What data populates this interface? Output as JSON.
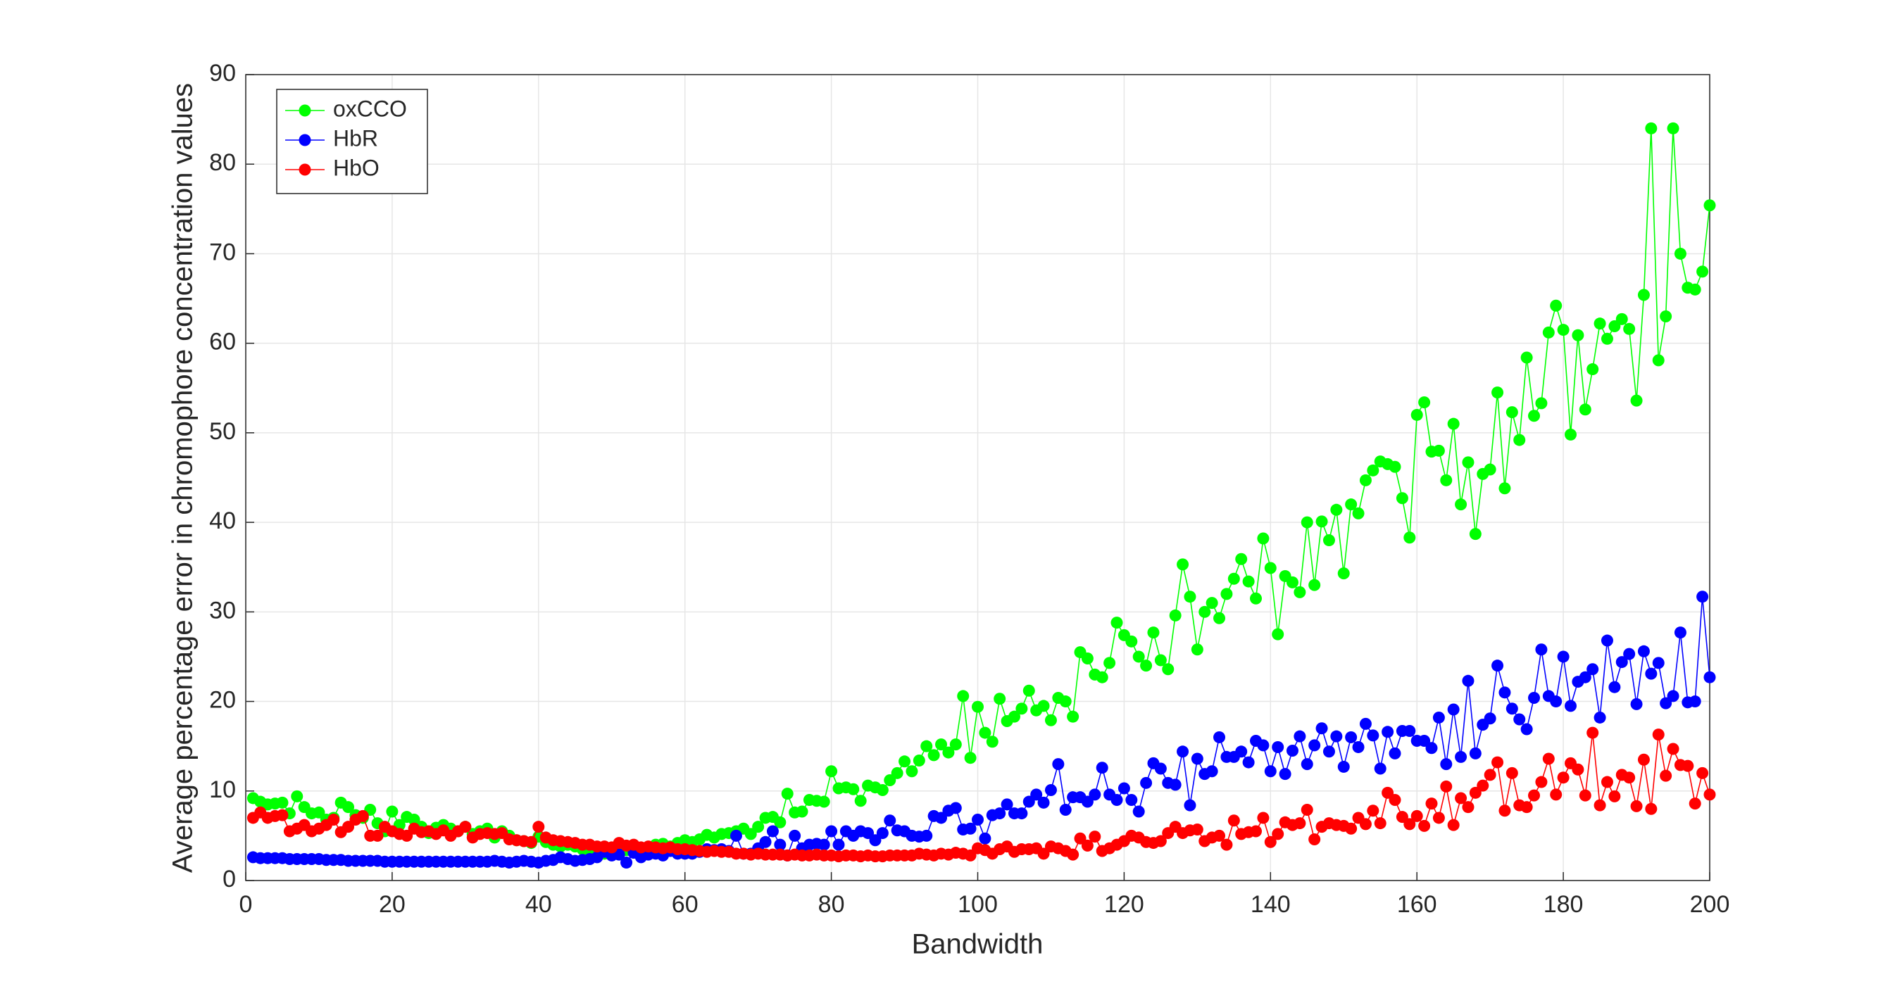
{
  "chart_data": {
    "type": "line",
    "xlabel": "Bandwidth",
    "ylabel": "Average percentage error in chromophore concentration values",
    "x": [
      1,
      2,
      3,
      4,
      5,
      6,
      7,
      8,
      9,
      10,
      11,
      12,
      13,
      14,
      15,
      16,
      17,
      18,
      19,
      20,
      21,
      22,
      23,
      24,
      25,
      26,
      27,
      28,
      29,
      30,
      31,
      32,
      33,
      34,
      35,
      36,
      37,
      38,
      39,
      40,
      41,
      42,
      43,
      44,
      45,
      46,
      47,
      48,
      49,
      50,
      51,
      52,
      53,
      54,
      55,
      56,
      57,
      58,
      59,
      60,
      61,
      62,
      63,
      64,
      65,
      66,
      67,
      68,
      69,
      70,
      71,
      72,
      73,
      74,
      75,
      76,
      77,
      78,
      79,
      80,
      81,
      82,
      83,
      84,
      85,
      86,
      87,
      88,
      89,
      90,
      91,
      92,
      93,
      94,
      95,
      96,
      97,
      98,
      99,
      100,
      101,
      102,
      103,
      104,
      105,
      106,
      107,
      108,
      109,
      110,
      111,
      112,
      113,
      114,
      115,
      116,
      117,
      118,
      119,
      120,
      121,
      122,
      123,
      124,
      125,
      126,
      127,
      128,
      129,
      130,
      131,
      132,
      133,
      134,
      135,
      136,
      137,
      138,
      139,
      140,
      141,
      142,
      143,
      144,
      145,
      146,
      147,
      148,
      149,
      150,
      151,
      152,
      153,
      154,
      155,
      156,
      157,
      158,
      159,
      160,
      161,
      162,
      163,
      164,
      165,
      166,
      167,
      168,
      169,
      170,
      171,
      172,
      173,
      174,
      175,
      176,
      177,
      178,
      179,
      180,
      181,
      182,
      183,
      184,
      185,
      186,
      187,
      188,
      189,
      190,
      191,
      192,
      193,
      194,
      195,
      196,
      197,
      198,
      199,
      200
    ],
    "series": [
      {
        "name": "oxCCO",
        "color": "#00ff00",
        "values": [
          9.2,
          8.8,
          8.5,
          8.6,
          8.7,
          7.5,
          9.4,
          8.2,
          7.5,
          7.6,
          6.8,
          7.0,
          8.7,
          8.2,
          7.3,
          7.0,
          7.9,
          6.4,
          5.5,
          7.7,
          6.2,
          7.1,
          6.8,
          6.0,
          5.3,
          5.9,
          6.2,
          5.8,
          5.5,
          6.0,
          5.2,
          5.5,
          5.8,
          4.8,
          5.5,
          5.0,
          4.5,
          4.4,
          4.2,
          4.9,
          4.3,
          4.0,
          3.8,
          4.0,
          3.8,
          3.5,
          3.2,
          3.3,
          3.0,
          3.1,
          3.0,
          3.4,
          3.2,
          3.5,
          3.3,
          4.0,
          4.1,
          3.8,
          4.2,
          4.5,
          4.3,
          4.6,
          5.1,
          4.8,
          5.2,
          5.3,
          5.5,
          5.8,
          5.2,
          6.0,
          7.0,
          7.1,
          6.5,
          9.7,
          7.6,
          7.7,
          9.0,
          8.9,
          8.8,
          12.2,
          10.3,
          10.4,
          10.2,
          8.9,
          10.6,
          10.4,
          10.1,
          11.2,
          12.0,
          13.3,
          12.2,
          13.4,
          15.0,
          14.0,
          15.2,
          14.3,
          15.2,
          20.6,
          13.7,
          19.4,
          16.5,
          15.5,
          20.3,
          17.8,
          18.3,
          19.2,
          21.2,
          19.0,
          19.5,
          17.9,
          20.4,
          20.0,
          18.3,
          25.5,
          24.8,
          23.0,
          22.7,
          24.3,
          28.8,
          27.4,
          26.7,
          25.0,
          24.0,
          27.7,
          24.6,
          23.6,
          29.6,
          35.3,
          31.7,
          25.8,
          30.0,
          31.0,
          29.3,
          32.0,
          33.7,
          35.9,
          33.4,
          31.5,
          38.2,
          34.9,
          27.5,
          34.0,
          33.3,
          32.2,
          40.0,
          33.0,
          40.1,
          38.0,
          41.4,
          34.3,
          42.0,
          41.0,
          44.7,
          45.8,
          46.8,
          46.5,
          46.2,
          42.7,
          38.3,
          52.0,
          53.4,
          47.9,
          48.0,
          44.7,
          51.0,
          42.0,
          46.7,
          38.7,
          45.4,
          45.9,
          54.5,
          43.8,
          52.3,
          49.2,
          58.4,
          51.9,
          53.3,
          61.2,
          64.2,
          61.5,
          49.8,
          60.9,
          52.6,
          57.1,
          62.2,
          60.5,
          61.9,
          62.7,
          61.6,
          53.6,
          65.4,
          84.0,
          58.1,
          63.0,
          84.0,
          70.0,
          66.2,
          66.0,
          68.0,
          75.4
        ]
      },
      {
        "name": "HbR",
        "color": "#0000ff",
        "values": [
          2.6,
          2.5,
          2.5,
          2.5,
          2.5,
          2.4,
          2.4,
          2.4,
          2.4,
          2.4,
          2.3,
          2.3,
          2.3,
          2.2,
          2.2,
          2.2,
          2.2,
          2.2,
          2.1,
          2.1,
          2.1,
          2.1,
          2.1,
          2.1,
          2.1,
          2.1,
          2.1,
          2.1,
          2.1,
          2.1,
          2.1,
          2.1,
          2.1,
          2.2,
          2.1,
          2.0,
          2.1,
          2.2,
          2.1,
          2.0,
          2.2,
          2.3,
          2.6,
          2.4,
          2.2,
          2.3,
          2.4,
          2.6,
          3.2,
          2.8,
          2.9,
          2.0,
          3.1,
          2.6,
          2.9,
          3.0,
          2.8,
          3.3,
          3.0,
          3.0,
          3.0,
          3.2,
          3.5,
          3.4,
          3.5,
          3.3,
          5.0,
          3.0,
          3.0,
          3.6,
          4.3,
          5.5,
          4.0,
          2.8,
          5.0,
          3.6,
          4.0,
          4.1,
          4.0,
          5.5,
          4.0,
          5.5,
          5.0,
          5.5,
          5.3,
          4.5,
          5.3,
          6.7,
          5.6,
          5.5,
          5.0,
          4.9,
          5.0,
          7.2,
          7.0,
          7.8,
          8.1,
          5.7,
          5.8,
          6.8,
          4.7,
          7.3,
          7.5,
          8.5,
          7.5,
          7.5,
          8.8,
          9.6,
          8.7,
          10.1,
          13.0,
          7.9,
          9.3,
          9.3,
          8.8,
          9.6,
          12.6,
          9.6,
          9.0,
          10.3,
          9.0,
          7.7,
          10.9,
          13.1,
          12.5,
          10.9,
          10.7,
          14.4,
          8.4,
          13.6,
          11.9,
          12.2,
          16.0,
          13.8,
          13.8,
          14.4,
          13.2,
          15.6,
          15.1,
          12.2,
          14.9,
          11.9,
          14.5,
          16.1,
          13.0,
          15.1,
          17.0,
          14.4,
          16.1,
          12.7,
          16.0,
          14.9,
          17.5,
          16.2,
          12.5,
          16.6,
          14.2,
          16.7,
          16.7,
          15.6,
          15.6,
          14.8,
          18.2,
          13.0,
          19.1,
          13.8,
          22.3,
          14.2,
          17.4,
          18.1,
          24.0,
          21.0,
          19.2,
          18.0,
          16.9,
          20.4,
          25.8,
          20.6,
          20.0,
          25.0,
          19.5,
          22.2,
          22.7,
          23.6,
          18.2,
          26.8,
          21.6,
          24.4,
          25.3,
          19.7,
          25.6,
          23.1,
          24.3,
          19.8,
          20.6,
          27.7,
          19.9,
          20.0,
          31.7,
          22.7
        ]
      },
      {
        "name": "HbO",
        "color": "#ff0000",
        "values": [
          7.0,
          7.6,
          7.0,
          7.2,
          7.3,
          5.5,
          5.8,
          6.2,
          5.5,
          5.8,
          6.2,
          6.8,
          5.4,
          6.0,
          6.8,
          7.2,
          5.0,
          5.0,
          6.0,
          5.5,
          5.2,
          5.0,
          5.8,
          5.4,
          5.5,
          5.2,
          5.6,
          5.0,
          5.5,
          6.0,
          4.8,
          5.2,
          5.3,
          5.2,
          5.3,
          4.6,
          4.5,
          4.4,
          4.3,
          6.0,
          4.8,
          4.5,
          4.4,
          4.3,
          4.2,
          4.0,
          4.0,
          3.8,
          3.8,
          3.7,
          4.2,
          3.9,
          4.0,
          3.7,
          3.8,
          3.7,
          3.6,
          3.7,
          3.5,
          3.5,
          3.4,
          3.3,
          3.2,
          3.3,
          3.2,
          3.2,
          3.0,
          3.0,
          2.9,
          3.0,
          2.9,
          2.9,
          2.9,
          2.8,
          2.9,
          2.8,
          2.8,
          2.9,
          2.8,
          2.8,
          2.7,
          2.8,
          2.8,
          2.7,
          2.8,
          2.7,
          2.7,
          2.8,
          2.8,
          2.8,
          2.8,
          3.0,
          2.9,
          2.8,
          3.0,
          2.9,
          3.1,
          3.0,
          2.8,
          3.6,
          3.4,
          3.0,
          3.5,
          3.8,
          3.2,
          3.5,
          3.5,
          3.6,
          3.0,
          3.8,
          3.6,
          3.3,
          2.9,
          4.7,
          3.9,
          4.9,
          3.3,
          3.6,
          4.0,
          4.4,
          5.0,
          4.8,
          4.3,
          4.2,
          4.4,
          5.3,
          6.0,
          5.3,
          5.6,
          5.7,
          4.4,
          4.8,
          5.0,
          4.0,
          6.7,
          5.2,
          5.4,
          5.5,
          7.0,
          4.3,
          5.2,
          6.5,
          6.2,
          6.4,
          7.9,
          4.6,
          6.0,
          6.4,
          6.2,
          6.1,
          5.8,
          7.0,
          6.3,
          7.8,
          6.4,
          9.8,
          9.0,
          7.1,
          6.3,
          7.2,
          6.1,
          8.6,
          7.0,
          10.5,
          6.2,
          9.2,
          8.2,
          9.8,
          10.6,
          11.8,
          13.2,
          7.8,
          12.0,
          8.4,
          8.2,
          9.5,
          11.0,
          13.6,
          9.6,
          11.5,
          13.1,
          12.4,
          9.5,
          16.5,
          8.4,
          11.0,
          9.4,
          11.8,
          11.5,
          8.3,
          13.5,
          8.0,
          16.3,
          11.7,
          14.7,
          12.9,
          12.8,
          8.6,
          12.0,
          9.6
        ]
      }
    ],
    "xlim": [
      0,
      200
    ],
    "xticks": [
      0,
      20,
      40,
      60,
      80,
      100,
      120,
      140,
      160,
      180,
      200
    ],
    "ylim": [
      0,
      90
    ],
    "yticks": [
      0,
      10,
      20,
      30,
      40,
      50,
      60,
      70,
      80,
      90
    ],
    "grid": true,
    "legend": "upper-left"
  }
}
